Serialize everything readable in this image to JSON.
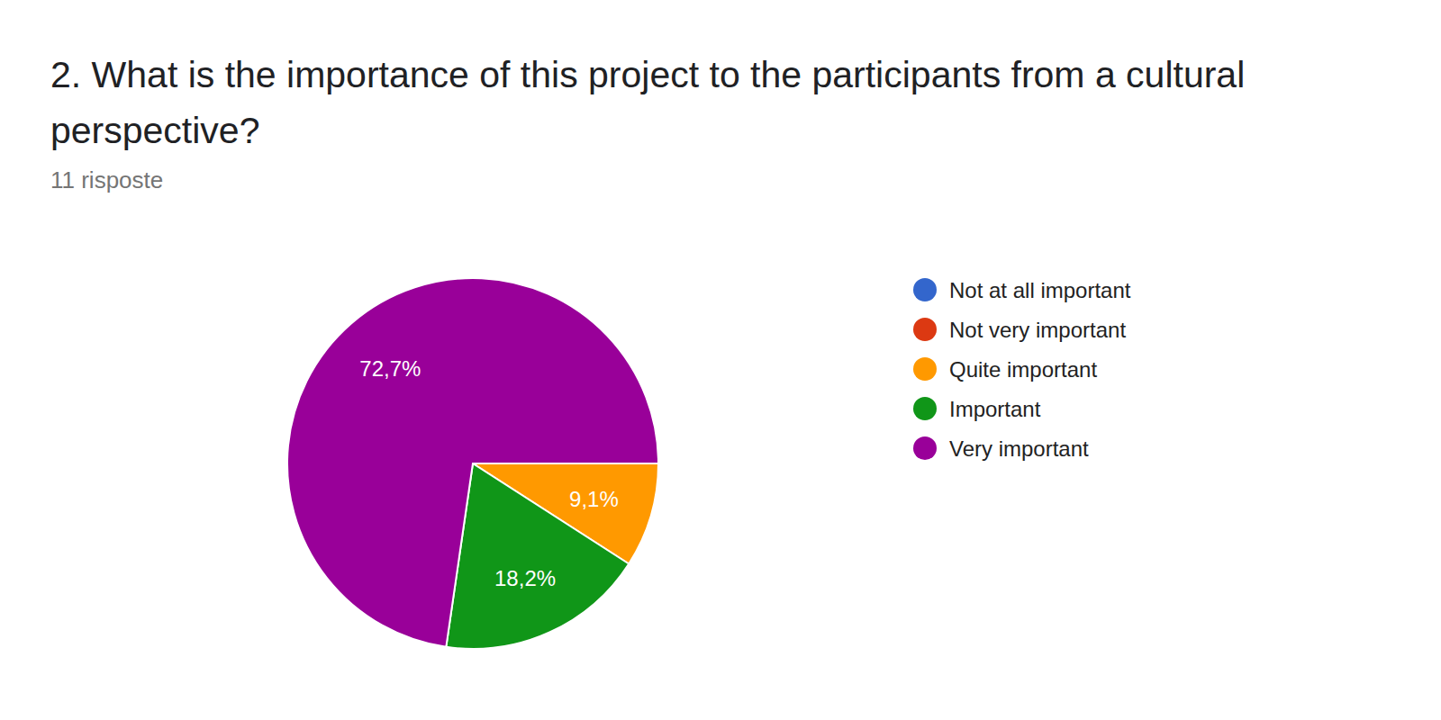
{
  "chart_data": {
    "type": "pie",
    "title": "2. What is the importance of this project to the participants from a cultural perspective?",
    "subtitle": "11 risposte",
    "categories": [
      "Not at all important",
      "Not very important",
      "Quite important",
      "Important",
      "Very important"
    ],
    "values": [
      0,
      0,
      9.1,
      18.2,
      72.7
    ],
    "value_labels": [
      null,
      null,
      "9,1%",
      "18,2%",
      "72,7%"
    ],
    "colors": [
      "#3366cc",
      "#dc3912",
      "#ff9900",
      "#109618",
      "#990099"
    ],
    "data_labels": true,
    "legend": "right"
  }
}
